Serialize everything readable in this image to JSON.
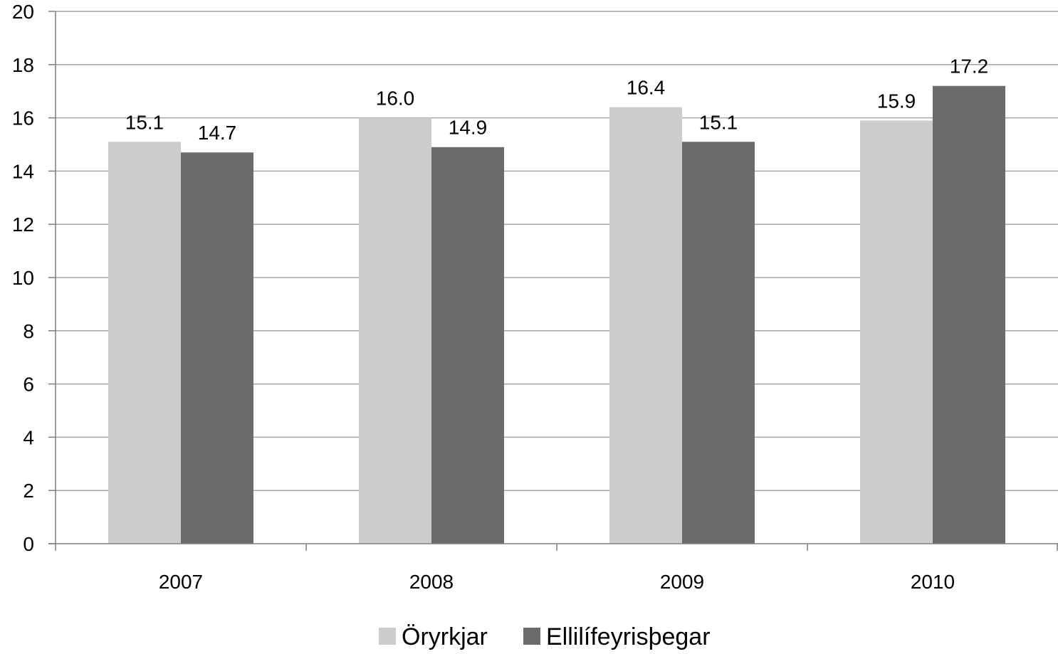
{
  "chart_data": {
    "type": "bar",
    "categories": [
      "2007",
      "2008",
      "2009",
      "2010"
    ],
    "series": [
      {
        "name": "Öryrkjar",
        "values": [
          15.1,
          16.0,
          16.4,
          15.9
        ],
        "labels": [
          "15.1",
          "16.0",
          "16.4",
          "15.9"
        ],
        "color": "#cccccc"
      },
      {
        "name": "Ellilífeyrisþegar",
        "values": [
          14.7,
          14.9,
          15.1,
          17.2
        ],
        "labels": [
          "14.7",
          "14.9",
          "15.1",
          "17.2"
        ],
        "color": "#6b6b6b"
      }
    ],
    "ylim": [
      0,
      20
    ],
    "yticks": [
      0,
      2,
      4,
      6,
      8,
      10,
      12,
      14,
      16,
      18,
      20
    ],
    "ytick_labels": [
      "0",
      "2",
      "4",
      "6",
      "8",
      "10",
      "12",
      "14",
      "16",
      "18",
      "20"
    ],
    "grid": true,
    "legend_position": "bottom",
    "gridline_color": "#a6a6a6",
    "axis_color": "#7f7f7f"
  }
}
